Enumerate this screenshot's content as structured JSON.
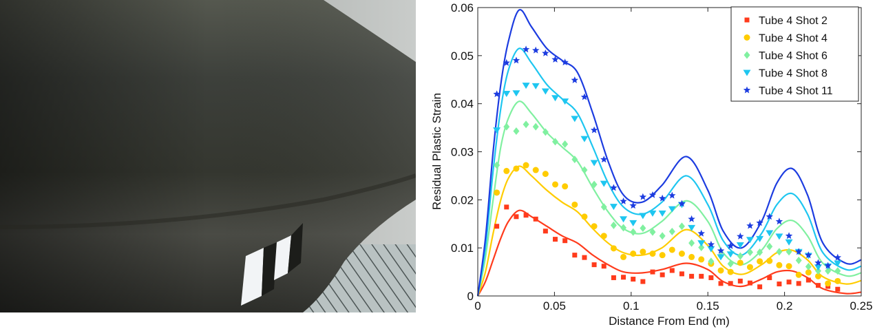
{
  "photo": {
    "subject": "steel-tube-photo"
  },
  "chart_data": {
    "type": "scatter",
    "title": "",
    "xlabel": "Distance From End (m)",
    "ylabel": "Residual Plastic Strain",
    "xlim": [
      0,
      0.25
    ],
    "ylim": [
      0,
      0.06
    ],
    "xticks": [
      0,
      0.05,
      0.1,
      0.15,
      0.2,
      0.25
    ],
    "xtick_labels": [
      "0",
      "0.05",
      "0.1",
      "0.15",
      "0.2",
      "0.25"
    ],
    "yticks": [
      0,
      0.01,
      0.02,
      0.03,
      0.04,
      0.05,
      0.06
    ],
    "ytick_labels": [
      "0",
      "0.01",
      "0.02",
      "0.03",
      "0.04",
      "0.05",
      "0.06"
    ],
    "grid": false,
    "legend_position": "top-right",
    "marker_x_start": 0.0124,
    "marker_x_step": 0.00635,
    "curve_x": [
      0,
      0.005,
      0.01,
      0.015,
      0.02,
      0.027,
      0.035,
      0.045,
      0.055,
      0.065,
      0.075,
      0.085,
      0.095,
      0.107,
      0.12,
      0.136,
      0.15,
      0.16,
      0.172,
      0.185,
      0.195,
      0.205,
      0.215,
      0.225,
      0.24,
      0.25
    ],
    "series": [
      {
        "name": "Tube 4 Shot 2",
        "marker": "square",
        "color": "#ff3b1c",
        "values": [
          0.0145,
          0.0185,
          0.0165,
          0.0168,
          0.016,
          0.0135,
          0.0118,
          0.0115,
          0.0085,
          0.008,
          0.0065,
          0.0062,
          0.0038,
          0.0039,
          0.0035,
          0.003,
          0.005,
          0.0044,
          0.0053,
          0.0046,
          0.0041,
          0.0041,
          0.0038,
          0.0026,
          0.0026,
          0.0031,
          0.0027,
          0.0019,
          0.0038,
          0.0025,
          0.0029,
          0.0026,
          0.0033,
          0.0022,
          0.002,
          0.0014
        ],
        "curve": [
          0,
          0.003,
          0.0075,
          0.012,
          0.0155,
          0.0178,
          0.0165,
          0.0145,
          0.0125,
          0.011,
          0.0085,
          0.0065,
          0.005,
          0.0048,
          0.0055,
          0.0068,
          0.0055,
          0.003,
          0.002,
          0.0035,
          0.005,
          0.0052,
          0.0038,
          0.0015,
          0.0005,
          0.0008
        ]
      },
      {
        "name": "Tube 4 Shot 4",
        "marker": "circle",
        "color": "#ffcc00",
        "values": [
          0.0215,
          0.026,
          0.0265,
          0.0272,
          0.0262,
          0.0254,
          0.0232,
          0.0228,
          0.019,
          0.0165,
          0.0145,
          0.0125,
          0.0099,
          0.0081,
          0.0088,
          0.0092,
          0.0088,
          0.0085,
          0.0096,
          0.0088,
          0.0081,
          0.0076,
          0.0067,
          0.0053,
          0.005,
          0.0069,
          0.006,
          0.0072,
          0.0073,
          0.0064,
          0.0062,
          0.0044,
          0.0049,
          0.0041,
          0.0026,
          0.0031
        ],
        "curve": [
          0,
          0.005,
          0.013,
          0.02,
          0.0245,
          0.027,
          0.025,
          0.022,
          0.0195,
          0.0175,
          0.014,
          0.011,
          0.009,
          0.0085,
          0.01,
          0.0138,
          0.0105,
          0.0062,
          0.0045,
          0.0065,
          0.009,
          0.0095,
          0.0075,
          0.004,
          0.0025,
          0.0032
        ]
      },
      {
        "name": "Tube 4 Shot 6",
        "marker": "diamond",
        "color": "#80f0a0",
        "values": [
          0.0272,
          0.0352,
          0.0343,
          0.0357,
          0.0352,
          0.0341,
          0.0321,
          0.0316,
          0.0284,
          0.0262,
          0.0232,
          0.0185,
          0.0147,
          0.0142,
          0.0133,
          0.0141,
          0.0133,
          0.0125,
          0.0134,
          0.0145,
          0.011,
          0.0101,
          0.0072,
          0.0083,
          0.0067,
          0.0083,
          0.0091,
          0.0091,
          0.0103,
          0.0092,
          0.0092,
          0.0074,
          0.0061,
          0.0052,
          0.0052,
          0.0052
        ],
        "curve": [
          0,
          0.008,
          0.02,
          0.031,
          0.037,
          0.0405,
          0.038,
          0.034,
          0.031,
          0.028,
          0.0225,
          0.0175,
          0.014,
          0.013,
          0.0155,
          0.0198,
          0.0155,
          0.009,
          0.0065,
          0.0095,
          0.014,
          0.0157,
          0.0125,
          0.0068,
          0.0042,
          0.0048
        ]
      },
      {
        "name": "Tube 4 Shot 8",
        "marker": "triangle-down",
        "color": "#1ec6f0",
        "values": [
          0.0345,
          0.0421,
          0.0422,
          0.0438,
          0.0437,
          0.0426,
          0.0412,
          0.0405,
          0.0369,
          0.0327,
          0.0277,
          0.0234,
          0.0186,
          0.016,
          0.0152,
          0.0167,
          0.0172,
          0.0172,
          0.0181,
          0.019,
          0.0142,
          0.011,
          0.0098,
          0.0081,
          0.0087,
          0.0106,
          0.0117,
          0.0119,
          0.0131,
          0.0124,
          0.0112,
          0.0092,
          0.0084,
          0.006,
          0.0062,
          0.0068
        ],
        "curve": [
          0,
          0.01,
          0.026,
          0.039,
          0.047,
          0.0515,
          0.0485,
          0.044,
          0.041,
          0.038,
          0.031,
          0.0235,
          0.0185,
          0.017,
          0.0195,
          0.025,
          0.019,
          0.0115,
          0.0085,
          0.013,
          0.019,
          0.0213,
          0.017,
          0.009,
          0.0055,
          0.0062
        ]
      },
      {
        "name": "Tube 4 Shot 11",
        "marker": "star",
        "color": "#1c3ce0",
        "values": [
          0.042,
          0.0485,
          0.049,
          0.0513,
          0.0511,
          0.0505,
          0.0492,
          0.0486,
          0.0449,
          0.0414,
          0.0345,
          0.0284,
          0.0225,
          0.0197,
          0.0188,
          0.0206,
          0.021,
          0.0203,
          0.0209,
          0.0192,
          0.016,
          0.013,
          0.0107,
          0.0094,
          0.0104,
          0.0124,
          0.0146,
          0.0152,
          0.0165,
          0.0155,
          0.0125,
          0.0092,
          0.0085,
          0.0069,
          0.0063,
          0.008
        ],
        "curve": [
          0,
          0.012,
          0.03,
          0.044,
          0.053,
          0.0595,
          0.056,
          0.0515,
          0.049,
          0.0465,
          0.038,
          0.028,
          0.021,
          0.0195,
          0.023,
          0.029,
          0.022,
          0.0135,
          0.01,
          0.0155,
          0.0235,
          0.0265,
          0.021,
          0.011,
          0.0068,
          0.0075
        ]
      }
    ]
  }
}
